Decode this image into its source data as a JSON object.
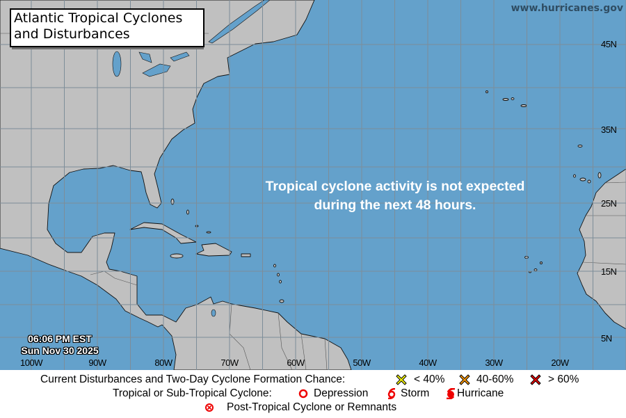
{
  "header": {
    "title_line1": "Atlantic Tropical Cyclones",
    "title_line2": "and Disturbances",
    "site": "www.hurricanes.gov"
  },
  "map": {
    "message_line1": "Tropical cyclone activity is not expected",
    "message_line2": "during the next 48 hours.",
    "time": "06:06 PM EST",
    "date": "Sun Nov 30 2025",
    "lon_labels": [
      "100W",
      "90W",
      "80W",
      "70W",
      "60W",
      "50W",
      "40W",
      "30W",
      "20W"
    ],
    "lat_labels": [
      "45N",
      "35N",
      "25N",
      "15N",
      "5N"
    ],
    "colors": {
      "water": "#64a1cb",
      "land": "#c0c0c0",
      "grid": "#7d8d99"
    }
  },
  "legend": {
    "row1_label": "Current Disturbances and Two-Day Cyclone Formation Chance:",
    "low": "< 40%",
    "medium": "40-60%",
    "high": "> 60%",
    "row2_label": "Tropical or Sub-Tropical Cyclone:",
    "depression": "Depression",
    "storm": "Storm",
    "hurricane": "Hurricane",
    "post_tropical": "Post-Tropical Cyclone or Remnants",
    "colors": {
      "low": "#ffff00",
      "medium": "#ff9900",
      "high": "#ee0000",
      "cyclone": "#ee0000"
    }
  }
}
